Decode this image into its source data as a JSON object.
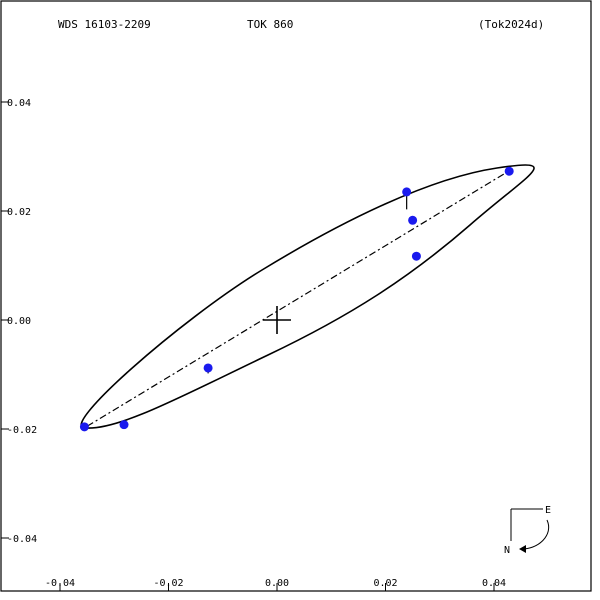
{
  "header": {
    "wds_id": "WDS 16103-2209",
    "discoverer": "TOK 860",
    "reference": "(Tok2024d)"
  },
  "compass": {
    "east_label": "E",
    "north_label": "N"
  },
  "colors": {
    "frame": "#000000",
    "orbit": "#000000",
    "points": "#1a1aee",
    "background": "#ffffff"
  },
  "chart_data": {
    "type": "scatter",
    "xlim": [
      -0.04,
      0.04
    ],
    "ylim": [
      -0.04,
      0.04
    ],
    "x_ticks": [
      {
        "value": -0.04,
        "label": "-0.04"
      },
      {
        "value": -0.02,
        "label": "-0.02"
      },
      {
        "value": 0.0,
        "label": "0.00"
      },
      {
        "value": 0.02,
        "label": "0.02"
      },
      {
        "value": 0.04,
        "label": "0.04"
      }
    ],
    "y_ticks": [
      {
        "value": 0.04,
        "label": "0.04"
      },
      {
        "value": 0.02,
        "label": "0.02"
      },
      {
        "value": 0.0,
        "label": "0.00"
      },
      {
        "value": -0.02,
        "label": "-0.02"
      },
      {
        "value": -0.04,
        "label": "-0.04"
      }
    ],
    "primary_star": [
      0.0,
      0.0
    ],
    "line_of_nodes": [
      [
        -0.035,
        -0.0195
      ],
      [
        0.043,
        0.0275
      ]
    ],
    "observations": [
      {
        "x": -0.0355,
        "y": -0.0196,
        "ox": -0.0352,
        "oy": -0.0196
      },
      {
        "x": -0.0282,
        "y": -0.0192,
        "ox": -0.0282,
        "oy": -0.0197
      },
      {
        "x": -0.0127,
        "y": -0.0088,
        "ox": -0.0127,
        "oy": -0.0098
      },
      {
        "x": 0.0239,
        "y": 0.0235,
        "ox": 0.0239,
        "oy": 0.0203
      },
      {
        "x": 0.025,
        "y": 0.0183,
        "ox": 0.025,
        "oy": 0.0183
      },
      {
        "x": 0.0257,
        "y": 0.0117,
        "ox": 0.0257,
        "oy": 0.0117
      },
      {
        "x": 0.0428,
        "y": 0.0273,
        "ox": 0.0428,
        "oy": 0.0273
      }
    ],
    "grid": false
  }
}
